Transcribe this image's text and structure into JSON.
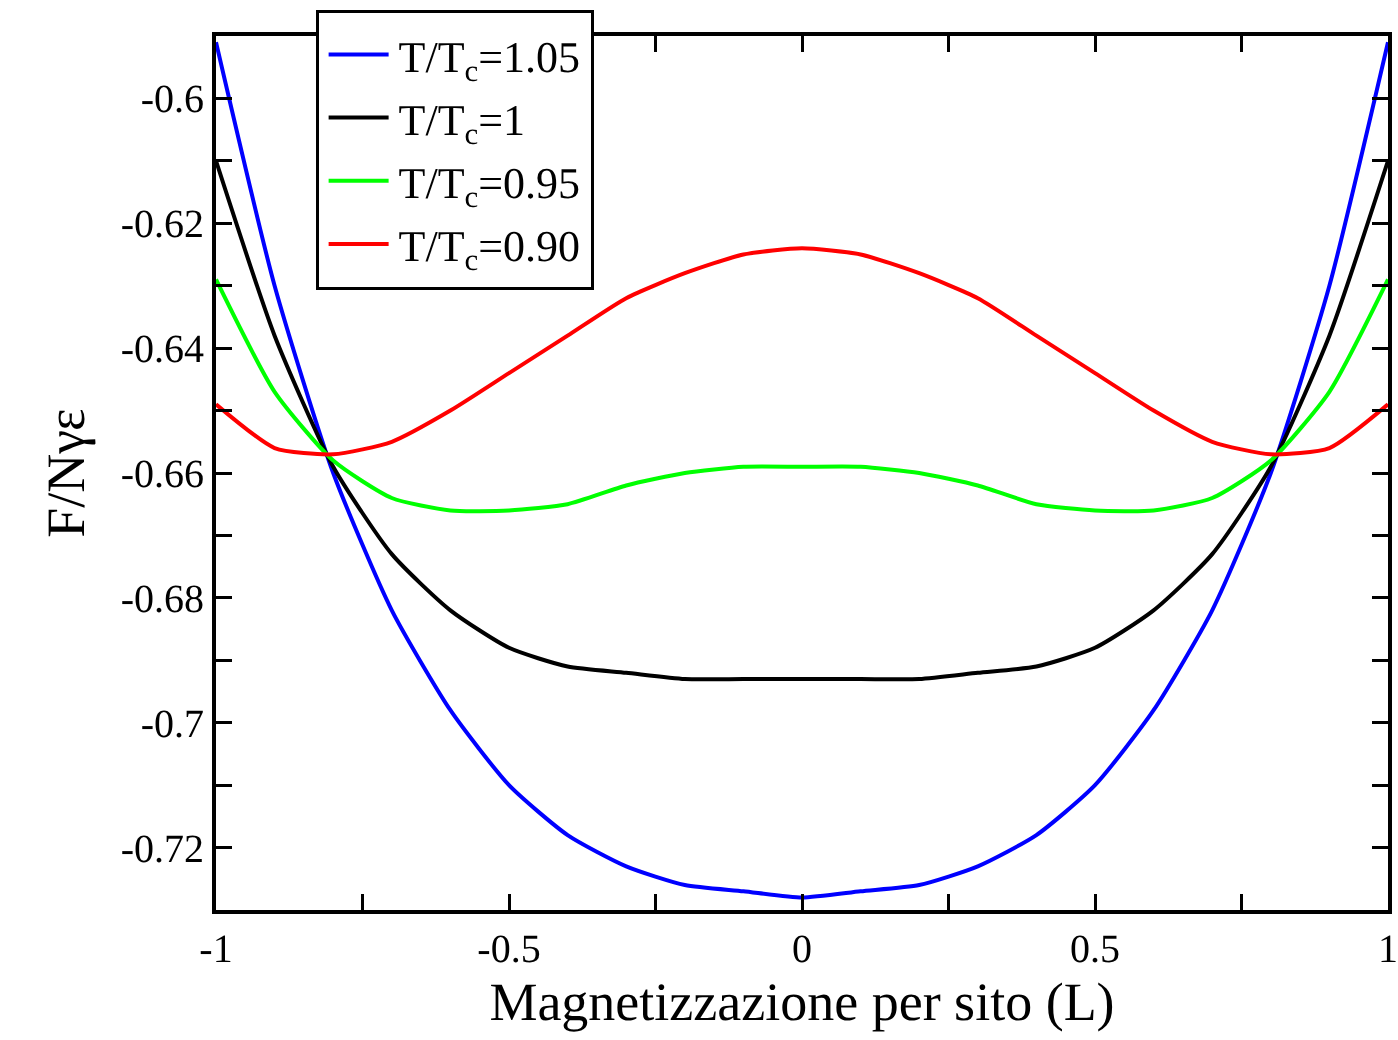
{
  "chart_data": {
    "type": "line",
    "xlabel": "Magnetizzazione per sito (L)",
    "ylabel": "F/Nγε",
    "x": [
      -1,
      -0.9,
      -0.8,
      -0.7,
      -0.6,
      -0.5,
      -0.4,
      -0.3,
      -0.2,
      -0.1,
      0,
      0.1,
      0.2,
      0.3,
      0.4,
      0.5,
      0.6,
      0.7,
      0.8,
      0.9,
      1
    ],
    "series": [
      {
        "name": "T/T$_{c}$=1.05",
        "color": "#0000ff",
        "values": [
          -0.591,
          -0.63,
          -0.66,
          -0.682,
          -0.698,
          -0.71,
          -0.718,
          -0.723,
          -0.726,
          -0.727,
          -0.728,
          -0.727,
          -0.726,
          -0.723,
          -0.718,
          -0.71,
          -0.698,
          -0.682,
          -0.66,
          -0.63,
          -0.591
        ]
      },
      {
        "name": "T/T$_{c}$=1",
        "color": "#000000",
        "values": [
          -0.61,
          -0.638,
          -0.659,
          -0.673,
          -0.682,
          -0.688,
          -0.691,
          -0.692,
          -0.693,
          -0.693,
          -0.693,
          -0.693,
          -0.693,
          -0.692,
          -0.691,
          -0.688,
          -0.682,
          -0.673,
          -0.659,
          -0.638,
          -0.61
        ]
      },
      {
        "name": "T/T$_{c}$=0.95",
        "color": "#00ff00",
        "values": [
          -0.629,
          -0.647,
          -0.658,
          -0.664,
          -0.666,
          -0.666,
          -0.665,
          -0.662,
          -0.66,
          -0.659,
          -0.659,
          -0.659,
          -0.66,
          -0.662,
          -0.665,
          -0.666,
          -0.666,
          -0.664,
          -0.658,
          -0.647,
          -0.629
        ]
      },
      {
        "name": "T/T$_{c}$=0.90",
        "color": "#ff0000",
        "values": [
          -0.649,
          -0.656,
          -0.657,
          -0.655,
          -0.65,
          -0.644,
          -0.638,
          -0.632,
          -0.628,
          -0.625,
          -0.624,
          -0.625,
          -0.628,
          -0.632,
          -0.638,
          -0.644,
          -0.65,
          -0.655,
          -0.657,
          -0.656,
          -0.649
        ]
      }
    ],
    "xlim": [
      -1,
      1
    ],
    "ylim": [
      -0.73,
      -0.59
    ],
    "xticks": [
      -1,
      {
        "value": -0.75,
        "label": null
      },
      -0.5,
      {
        "value": -0.25,
        "label": null
      },
      0,
      {
        "value": 0.25,
        "label": null
      },
      0.5,
      {
        "value": 0.75,
        "label": null
      },
      1
    ],
    "yticks": [
      -0.72,
      {
        "value": -0.71,
        "label": null
      },
      -0.7,
      {
        "value": -0.69,
        "label": null
      },
      -0.68,
      {
        "value": -0.67,
        "label": null
      },
      -0.66,
      {
        "value": -0.65,
        "label": null
      },
      -0.64,
      {
        "value": -0.63,
        "label": null
      },
      -0.62,
      {
        "value": -0.61,
        "label": null
      },
      -0.6
    ],
    "grid": false,
    "legend": "top left",
    "marker": "none",
    "line_style": "solid"
  }
}
